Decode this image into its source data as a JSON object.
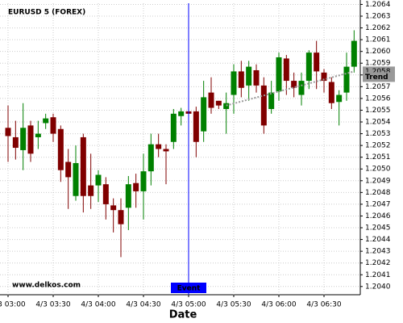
{
  "chart_data": {
    "type": "candlestick",
    "title": "EURUSD 5 (FOREX)",
    "xlabel": "Date",
    "watermark": "www.delkos.com",
    "categories": [
      "4/3 03:00",
      null,
      null,
      null,
      null,
      null,
      "4/3 03:30",
      null,
      null,
      null,
      null,
      null,
      "4/3 04:00",
      null,
      null,
      null,
      null,
      null,
      "4/3 04:30",
      null,
      null,
      null,
      null,
      null,
      "4/3 05:00",
      null,
      null,
      null,
      null,
      null,
      "4/3 05:30",
      null,
      null,
      null,
      null,
      null,
      "4/3 06:00",
      null,
      null,
      null,
      null,
      null,
      "4/3 06:30",
      null,
      null,
      null,
      null
    ],
    "series": {
      "up_color": "#008000",
      "down_color": "#800000",
      "open": [
        1.20535,
        1.20527,
        1.20516,
        1.20537,
        1.20527,
        1.20539,
        1.20544,
        1.20534,
        1.20506,
        1.20477,
        1.20527,
        1.20486,
        1.20486,
        1.20487,
        1.20469,
        1.20465,
        1.20467,
        1.20488,
        1.20481,
        1.20498,
        1.20521,
        1.20517,
        1.20523,
        1.20545,
        1.20549,
        1.20549,
        1.20532,
        1.20565,
        1.20558,
        1.20551,
        1.20563,
        1.20583,
        1.20571,
        1.20584,
        1.20571,
        1.20551,
        1.20566,
        1.20594,
        1.20575,
        1.20563,
        1.20575,
        1.20599,
        1.20582,
        1.20574,
        1.20557,
        1.20565,
        1.20587
      ],
      "high": [
        1.20554,
        1.20541,
        1.20556,
        1.20541,
        1.20541,
        1.20547,
        1.20547,
        1.20537,
        1.20517,
        1.2052,
        1.2053,
        1.20513,
        1.20499,
        1.20493,
        1.20475,
        1.20475,
        1.20494,
        1.20496,
        1.20513,
        1.2053,
        1.2053,
        1.20521,
        1.20551,
        1.20552,
        1.20551,
        1.20553,
        1.20575,
        1.20578,
        1.20558,
        1.20565,
        1.20589,
        1.20592,
        1.20592,
        1.20589,
        1.20578,
        1.20575,
        1.20599,
        1.20597,
        1.20582,
        1.20582,
        1.20601,
        1.20609,
        1.20585,
        1.20578,
        1.20567,
        1.20599,
        1.20618
      ],
      "low": [
        1.20506,
        1.20508,
        1.20499,
        1.20506,
        1.20517,
        1.20534,
        1.20523,
        1.20489,
        1.20466,
        1.20473,
        1.20463,
        1.20466,
        1.20472,
        1.20457,
        1.20446,
        1.20425,
        1.20448,
        1.20467,
        1.20457,
        1.20486,
        1.2051,
        1.20487,
        1.20517,
        1.20537,
        1.20541,
        1.2051,
        1.20523,
        1.20547,
        1.20551,
        1.2053,
        1.20547,
        1.20561,
        1.20558,
        1.20565,
        1.2053,
        1.20547,
        1.20558,
        1.20563,
        1.20561,
        1.20554,
        1.20568,
        1.20568,
        1.20565,
        1.20551,
        1.20537,
        1.20558,
        1.20582
      ],
      "close": [
        1.20528,
        1.20518,
        1.20535,
        1.20513,
        1.2053,
        1.20543,
        1.2053,
        1.20499,
        1.20493,
        1.20505,
        1.20477,
        1.20477,
        1.20495,
        1.2047,
        1.20465,
        1.20453,
        1.20487,
        1.20481,
        1.20498,
        1.20521,
        1.20517,
        1.20515,
        1.20547,
        1.20549,
        1.20547,
        1.20523,
        1.20561,
        1.20552,
        1.20554,
        1.20556,
        1.20583,
        1.20569,
        1.20587,
        1.20571,
        1.20537,
        1.20565,
        1.20595,
        1.20575,
        1.20569,
        1.20575,
        1.20599,
        1.20583,
        1.20575,
        1.20556,
        1.20563,
        1.20587,
        1.20609
      ]
    },
    "trend": {
      "name": "Trend",
      "x": [
        29,
        46
      ],
      "values": [
        1.20554,
        1.20583
      ],
      "value_labels": [
        null,
        "1.2058"
      ],
      "color": "#999999"
    },
    "event": {
      "label": "Event",
      "x": 24,
      "color": "#0000ff"
    },
    "ylim": [
      1.20393,
      1.20641
    ],
    "yticks": [
      {
        "value": 1.204,
        "label": "1.2040"
      },
      1.2041,
      1.2042,
      1.2043,
      1.2044,
      1.2045,
      1.2046,
      1.2047,
      1.2048,
      1.2049,
      {
        "value": 1.205,
        "label": "1.2050"
      },
      1.2051,
      1.2052,
      1.2053,
      1.2054,
      1.2055,
      1.2056,
      1.2057,
      1.2058,
      1.2059,
      {
        "value": 1.206,
        "label": "1.2060"
      },
      1.2061,
      1.2062,
      1.2063,
      1.2064
    ],
    "grid": true
  }
}
